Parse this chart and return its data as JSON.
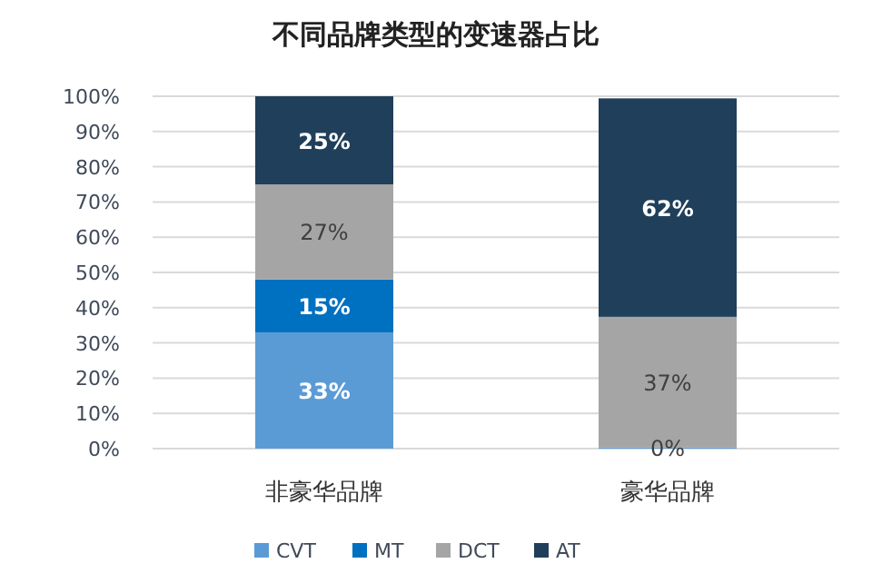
{
  "chart_data": {
    "type": "bar",
    "stacked": true,
    "title": "不同品牌类型的变速器占比",
    "categories": [
      "非豪华品牌",
      "豪华品牌"
    ],
    "series": [
      {
        "name": "CVT",
        "color": "#5b9bd5",
        "values": [
          33,
          0.4
        ],
        "value_labels": [
          "33%",
          "0%"
        ]
      },
      {
        "name": "MT",
        "color": "#0070c0",
        "values": [
          15,
          0
        ],
        "value_labels": [
          "15%",
          null
        ]
      },
      {
        "name": "DCT",
        "color": "#a5a5a5",
        "values": [
          27,
          37
        ],
        "value_labels": [
          "27%",
          "37%"
        ]
      },
      {
        "name": "AT",
        "color": "#203f5a",
        "values": [
          25,
          62
        ],
        "value_labels": [
          "25%",
          "62%"
        ]
      }
    ],
    "ylim": [
      0,
      100
    ],
    "yticks": [
      {
        "value": 0,
        "label": "0%"
      },
      {
        "value": 10,
        "label": "10%"
      },
      {
        "value": 20,
        "label": "20%"
      },
      {
        "value": 30,
        "label": "30%"
      },
      {
        "value": 40,
        "label": "40%"
      },
      {
        "value": 50,
        "label": "50%"
      },
      {
        "value": 60,
        "label": "60%"
      },
      {
        "value": 70,
        "label": "70%"
      },
      {
        "value": 80,
        "label": "80%"
      },
      {
        "value": 90,
        "label": "90%"
      },
      {
        "value": 100,
        "label": "100%"
      }
    ],
    "grid": "y",
    "legend": "bottom"
  }
}
